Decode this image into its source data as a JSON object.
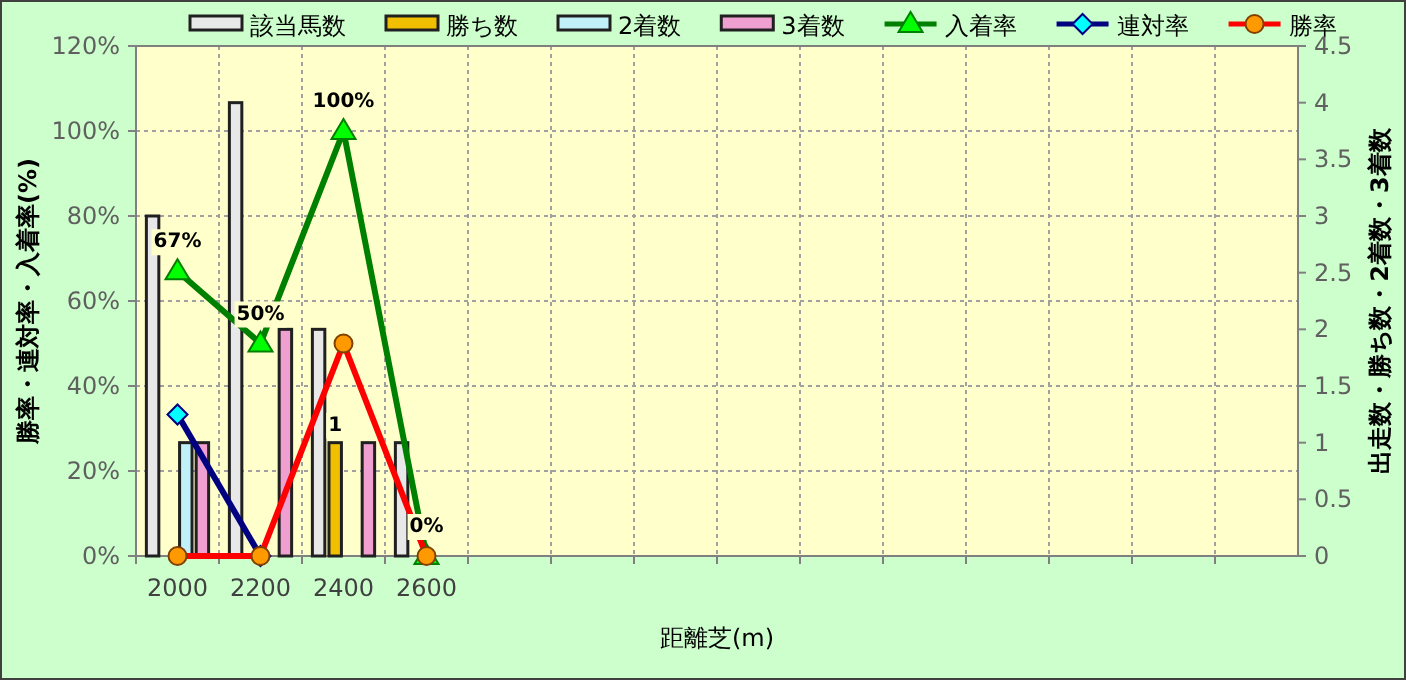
{
  "chart_data": {
    "type": "bar",
    "xlabel": "距離芝(m)",
    "ylabel": "勝率・連対率・入着率(%)",
    "y2label": "出走数・勝ち数・2着数・3着数",
    "categories": [
      "2000",
      "2200",
      "2400",
      "2600",
      null,
      null,
      null,
      null,
      null,
      null,
      null,
      null,
      null,
      null
    ],
    "series": [
      {
        "name": "該当馬数",
        "axis": "y2",
        "color": "#e8e8e8",
        "values": [
          3,
          4,
          2,
          1,
          null,
          null,
          null,
          null,
          null,
          null,
          null,
          null,
          null,
          null
        ]
      },
      {
        "name": "勝ち数",
        "axis": "y2",
        "color": "#f0c000",
        "values": [
          0,
          0,
          1,
          0,
          null,
          null,
          null,
          null,
          null,
          null,
          null,
          null,
          null,
          null
        ],
        "value_labels": [
          null,
          null,
          "1",
          null,
          null,
          null,
          null,
          null,
          null,
          null,
          null,
          null,
          null,
          null
        ]
      },
      {
        "name": "2着数",
        "axis": "y2",
        "color": "#c0f0f8",
        "values": [
          1,
          0,
          0,
          0,
          null,
          null,
          null,
          null,
          null,
          null,
          null,
          null,
          null,
          null
        ]
      },
      {
        "name": "3着数",
        "axis": "y2",
        "color": "#f0a0d0",
        "values": [
          1,
          2,
          1,
          0,
          null,
          null,
          null,
          null,
          null,
          null,
          null,
          null,
          null,
          null
        ]
      },
      {
        "name": "入着率",
        "type": "line",
        "axis": "y",
        "color": "#008000",
        "marker": "triangle",
        "values": [
          67,
          50,
          100,
          0,
          null,
          null,
          null,
          null,
          null,
          null,
          null,
          null,
          null,
          null
        ],
        "value_labels": [
          "67%",
          "50%",
          "100%",
          "0%",
          null,
          null,
          null,
          null,
          null,
          null,
          null,
          null,
          null,
          null
        ]
      },
      {
        "name": "連対率",
        "type": "line",
        "axis": "y",
        "color": "#000080",
        "marker": "diamond",
        "values": [
          33.3,
          0,
          null,
          null,
          null,
          null,
          null,
          null,
          null,
          null,
          null,
          null,
          null,
          null
        ]
      },
      {
        "name": "勝率",
        "type": "line",
        "axis": "y",
        "color": "#ff0000",
        "marker": "circle",
        "values": [
          0,
          0,
          50,
          0,
          null,
          null,
          null,
          null,
          null,
          null,
          null,
          null,
          null,
          null
        ]
      }
    ],
    "ylim": [
      0,
      120
    ],
    "yticks": [
      {
        "value": 0,
        "label": "0%"
      },
      {
        "value": 20,
        "label": "20%"
      },
      {
        "value": 40,
        "label": "40%"
      },
      {
        "value": 60,
        "label": "60%"
      },
      {
        "value": 80,
        "label": "80%"
      },
      {
        "value": 100,
        "label": "100%"
      },
      {
        "value": 120,
        "label": "120%"
      }
    ],
    "y2lim": [
      0,
      4.5
    ],
    "y2ticks": [
      0,
      0.5,
      1,
      1.5,
      2,
      2.5,
      3,
      3.5,
      4,
      4.5
    ],
    "grid": true,
    "legend": "top"
  }
}
